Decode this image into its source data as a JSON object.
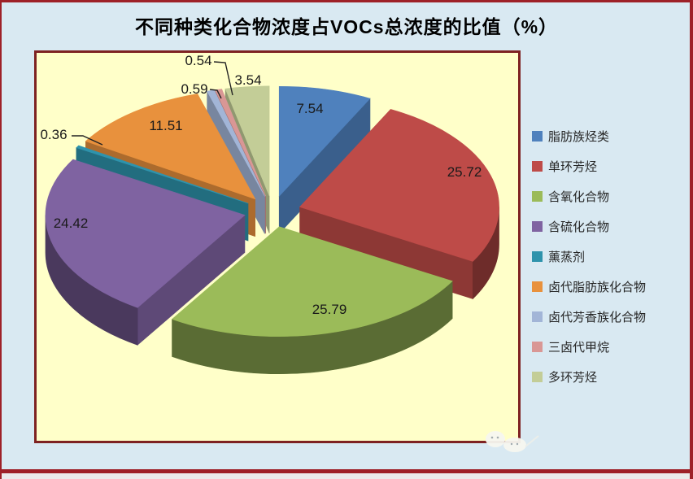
{
  "title": "不同种类化合物浓度占VOCs总浓度的比值（%）",
  "chart_data": {
    "type": "pie",
    "style": "3d-exploded-pie",
    "title": "不同种类化合物浓度占VOCs总浓度的比值（%）",
    "unit": "%",
    "direction": "clockwise",
    "start_angle_deg": 0,
    "legend_position": "right",
    "categories": [
      "脂肪族烃类",
      "单环芳烃",
      "含氧化合物",
      "含硫化合物",
      "薰蒸剂",
      "卤代脂肪族化合物",
      "卤代芳香族化合物",
      "三卤代甲烷",
      "多环芳烃"
    ],
    "values": [
      7.54,
      25.72,
      25.79,
      24.42,
      0.36,
      11.51,
      0.59,
      0.54,
      3.54
    ],
    "colors": [
      "#4F81BD",
      "#BE4B48",
      "#9BBB59",
      "#7F63A1",
      "#2E93AC",
      "#E8913D",
      "#A2B5D7",
      "#D99795",
      "#C3CD97"
    ]
  },
  "colors": {
    "page_background": "#D9E9F2",
    "plot_background": "#FFFFC9",
    "frame_border": "#9E2128",
    "plot_border": "#7E2222",
    "title_text": "#000000",
    "label_text": "#1A1A1A",
    "legend_text": "#262626"
  }
}
